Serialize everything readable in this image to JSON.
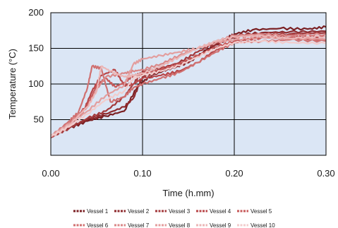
{
  "chart_data": {
    "type": "line",
    "title": "",
    "xlabel": "Time (h.mm)",
    "ylabel": "Temperature (°C)",
    "xlim": [
      0,
      0.3
    ],
    "ylim": [
      0,
      200
    ],
    "x_ticks": [
      "0.00",
      "0.10",
      "0.20",
      "0.30"
    ],
    "y_ticks": [
      "50",
      "100",
      "150",
      "200"
    ],
    "grid": true,
    "legend_position": "bottom",
    "plot_background": "#dbe6f5",
    "series": [
      {
        "name": "Vessel 1",
        "color": "#7a1f22",
        "x": [
          0,
          0.02,
          0.04,
          0.06,
          0.08,
          0.095,
          0.11,
          0.13,
          0.15,
          0.17,
          0.19,
          0.2,
          0.22,
          0.25,
          0.28,
          0.3
        ],
        "y": [
          26,
          38,
          48,
          55,
          62,
          98,
          112,
          122,
          130,
          148,
          163,
          170,
          176,
          178,
          177,
          180
        ]
      },
      {
        "name": "Vessel 2",
        "color": "#8e2a2d",
        "x": [
          0,
          0.02,
          0.04,
          0.06,
          0.08,
          0.09,
          0.1,
          0.12,
          0.14,
          0.16,
          0.18,
          0.2,
          0.23,
          0.26,
          0.3
        ],
        "y": [
          27,
          40,
          50,
          58,
          68,
          80,
          110,
          118,
          125,
          138,
          155,
          168,
          172,
          173,
          174
        ]
      },
      {
        "name": "Vessel 3",
        "color": "#a33a3c",
        "x": [
          0,
          0.02,
          0.04,
          0.06,
          0.08,
          0.09,
          0.1,
          0.12,
          0.14,
          0.16,
          0.18,
          0.2,
          0.23,
          0.26,
          0.3
        ],
        "y": [
          25,
          38,
          52,
          62,
          82,
          100,
          118,
          122,
          130,
          145,
          158,
          165,
          170,
          170,
          172
        ]
      },
      {
        "name": "Vessel 4",
        "color": "#b84648",
        "x": [
          0,
          0.02,
          0.035,
          0.045,
          0.055,
          0.07,
          0.08,
          0.09,
          0.1,
          0.12,
          0.14,
          0.16,
          0.18,
          0.2,
          0.23,
          0.26,
          0.3
        ],
        "y": [
          27,
          42,
          60,
          90,
          112,
          120,
          98,
          100,
          108,
          112,
          118,
          130,
          148,
          160,
          166,
          168,
          166
        ]
      },
      {
        "name": "Vessel 5",
        "color": "#c75a5a",
        "x": [
          0,
          0.02,
          0.04,
          0.05,
          0.06,
          0.07,
          0.08,
          0.09,
          0.1,
          0.12,
          0.14,
          0.16,
          0.18,
          0.2,
          0.23,
          0.26,
          0.3
        ],
        "y": [
          26,
          45,
          70,
          98,
          108,
          96,
          102,
          112,
          115,
          120,
          128,
          140,
          152,
          160,
          165,
          165,
          162
        ]
      },
      {
        "name": "Vessel 6",
        "color": "#d07070",
        "x": [
          0,
          0.02,
          0.03,
          0.04,
          0.045,
          0.055,
          0.065,
          0.08,
          0.09,
          0.1,
          0.12,
          0.14,
          0.16,
          0.18,
          0.2,
          0.23,
          0.26,
          0.3
        ],
        "y": [
          26,
          48,
          60,
          95,
          125,
          122,
          75,
          82,
          95,
          100,
          108,
          116,
          130,
          145,
          158,
          160,
          162,
          160
        ]
      },
      {
        "name": "Vessel 7",
        "color": "#da8888",
        "x": [
          0,
          0.02,
          0.04,
          0.05,
          0.06,
          0.08,
          0.09,
          0.1,
          0.12,
          0.14,
          0.16,
          0.18,
          0.2,
          0.23,
          0.26,
          0.3
        ],
        "y": [
          28,
          45,
          68,
          92,
          110,
          115,
          118,
          120,
          128,
          140,
          150,
          160,
          168,
          170,
          168,
          170
        ]
      },
      {
        "name": "Vessel 8",
        "color": "#e39e9e",
        "x": [
          0,
          0.02,
          0.04,
          0.06,
          0.08,
          0.09,
          0.1,
          0.12,
          0.14,
          0.16,
          0.18,
          0.2,
          0.23,
          0.26,
          0.3
        ],
        "y": [
          27,
          44,
          62,
          84,
          98,
          128,
          135,
          140,
          145,
          150,
          158,
          162,
          165,
          164,
          163
        ]
      },
      {
        "name": "Vessel 9",
        "color": "#ebb6b6",
        "x": [
          0,
          0.02,
          0.04,
          0.05,
          0.055,
          0.065,
          0.08,
          0.09,
          0.1,
          0.12,
          0.14,
          0.16,
          0.18,
          0.2,
          0.23,
          0.26,
          0.3
        ],
        "y": [
          27,
          42,
          68,
          90,
          125,
          118,
          110,
          112,
          115,
          125,
          138,
          150,
          160,
          166,
          168,
          164,
          167
        ]
      },
      {
        "name": "Vessel 10",
        "color": "#f2cccc",
        "x": [
          0,
          0.02,
          0.04,
          0.06,
          0.08,
          0.09,
          0.1,
          0.12,
          0.14,
          0.16,
          0.18,
          0.2,
          0.23,
          0.26,
          0.3
        ],
        "y": [
          26,
          40,
          58,
          78,
          90,
          108,
          112,
          118,
          126,
          138,
          150,
          158,
          160,
          158,
          157
        ]
      }
    ]
  }
}
